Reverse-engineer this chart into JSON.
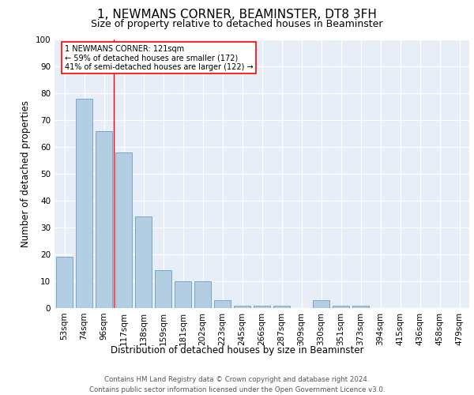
{
  "title": "1, NEWMANS CORNER, BEAMINSTER, DT8 3FH",
  "subtitle": "Size of property relative to detached houses in Beaminster",
  "xlabel": "Distribution of detached houses by size in Beaminster",
  "ylabel": "Number of detached properties",
  "footer": "Contains HM Land Registry data © Crown copyright and database right 2024.\nContains public sector information licensed under the Open Government Licence v3.0.",
  "categories": [
    "53sqm",
    "74sqm",
    "96sqm",
    "117sqm",
    "138sqm",
    "159sqm",
    "181sqm",
    "202sqm",
    "223sqm",
    "245sqm",
    "266sqm",
    "287sqm",
    "309sqm",
    "330sqm",
    "351sqm",
    "373sqm",
    "394sqm",
    "415sqm",
    "436sqm",
    "458sqm",
    "479sqm"
  ],
  "values": [
    19,
    78,
    66,
    58,
    34,
    14,
    10,
    10,
    3,
    1,
    1,
    1,
    0,
    3,
    1,
    1,
    0,
    0,
    0,
    0,
    0
  ],
  "bar_color": "#b3cde3",
  "bar_edge_color": "#6a9ec5",
  "vline_x": 2.5,
  "vline_color": "red",
  "annotation_text": "1 NEWMANS CORNER: 121sqm\n← 59% of detached houses are smaller (172)\n41% of semi-detached houses are larger (122) →",
  "annotation_box_color": "white",
  "annotation_box_edge_color": "red",
  "ylim": [
    0,
    100
  ],
  "yticks": [
    0,
    10,
    20,
    30,
    40,
    50,
    60,
    70,
    80,
    90,
    100
  ],
  "plot_bg_color": "#e8eef7",
  "title_fontsize": 11,
  "subtitle_fontsize": 9,
  "axis_label_fontsize": 8.5,
  "tick_fontsize": 7.5,
  "footer_fontsize": 6.2
}
